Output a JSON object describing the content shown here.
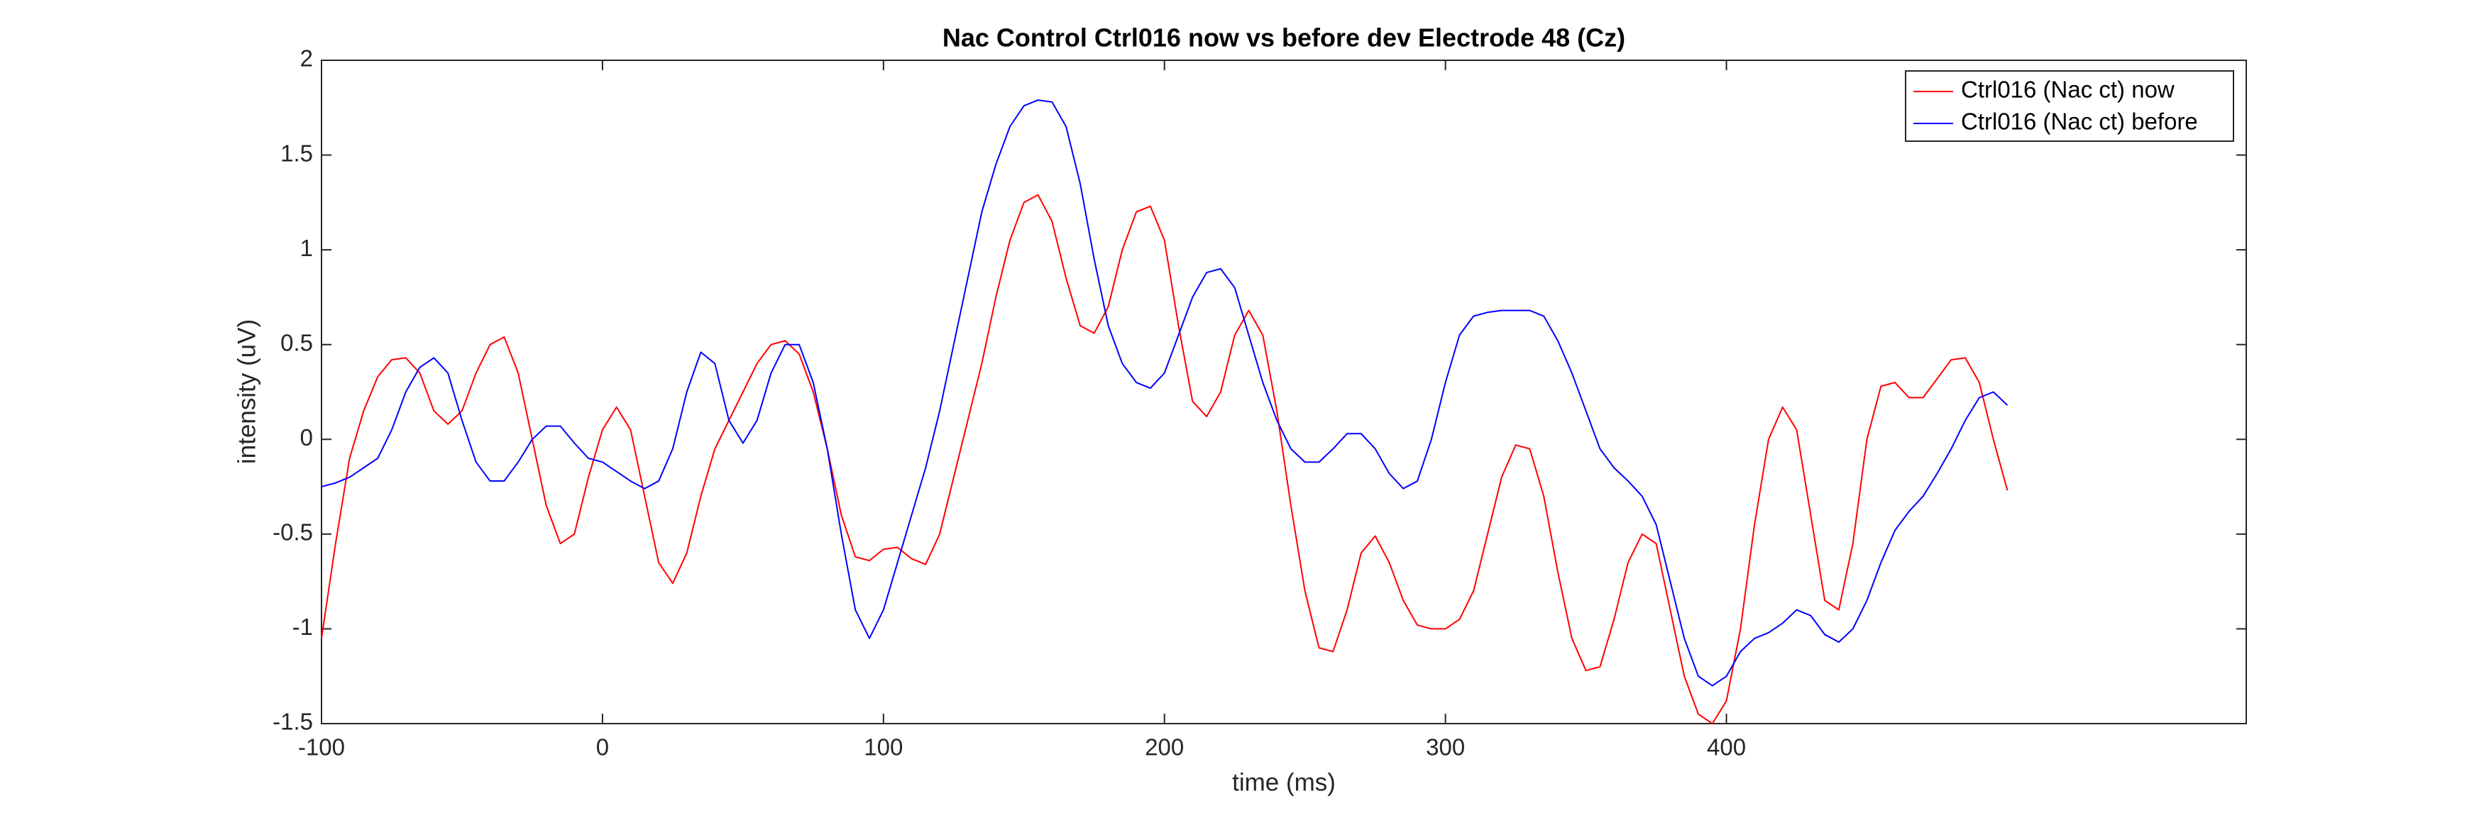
{
  "chart_data": {
    "type": "line",
    "title": "Nac Control Ctrl016 now vs before dev Electrode 48 (Cz)",
    "x_label": "time (ms)",
    "y_label": "intensity (uV)",
    "x": [
      -100,
      -95,
      -90,
      -85,
      -80,
      -75,
      -70,
      -65,
      -60,
      -55,
      -50,
      -45,
      -40,
      -35,
      -30,
      -25,
      -20,
      -15,
      -10,
      -5,
      0,
      5,
      10,
      15,
      20,
      25,
      30,
      35,
      40,
      45,
      50,
      55,
      60,
      65,
      70,
      75,
      80,
      85,
      90,
      95,
      100,
      105,
      110,
      115,
      120,
      125,
      130,
      135,
      140,
      145,
      150,
      155,
      160,
      165,
      170,
      175,
      180,
      185,
      190,
      195,
      200,
      205,
      210,
      215,
      220,
      225,
      230,
      235,
      240,
      245,
      250,
      255,
      260,
      265,
      270,
      275,
      280,
      285,
      290,
      295,
      300,
      305,
      310,
      315,
      320,
      325,
      330,
      335,
      340,
      345,
      350,
      355,
      360,
      365,
      370,
      375,
      380,
      385,
      390,
      395,
      400,
      405,
      410,
      415,
      420,
      425,
      430,
      435,
      440,
      445,
      450,
      455,
      460,
      465,
      470,
      475,
      480,
      485,
      490,
      495,
      500
    ],
    "series": [
      {
        "name": "Ctrl016 (Nac ct) now",
        "color": "#ff0000",
        "values": [
          -1.05,
          -0.55,
          -0.1,
          0.15,
          0.33,
          0.42,
          0.43,
          0.35,
          0.15,
          0.08,
          0.15,
          0.35,
          0.5,
          0.54,
          0.35,
          0.0,
          -0.35,
          -0.55,
          -0.5,
          -0.2,
          0.05,
          0.17,
          0.05,
          -0.3,
          -0.65,
          -0.76,
          -0.6,
          -0.3,
          -0.05,
          0.1,
          0.25,
          0.4,
          0.5,
          0.52,
          0.45,
          0.25,
          -0.05,
          -0.4,
          -0.62,
          -0.64,
          -0.58,
          -0.57,
          -0.63,
          -0.66,
          -0.5,
          -0.2,
          0.1,
          0.4,
          0.75,
          1.05,
          1.25,
          1.29,
          1.15,
          0.85,
          0.6,
          0.56,
          0.7,
          1.0,
          1.2,
          1.23,
          1.05,
          0.6,
          0.2,
          0.12,
          0.25,
          0.55,
          0.68,
          0.55,
          0.15,
          -0.35,
          -0.8,
          -1.1,
          -1.12,
          -0.9,
          -0.6,
          -0.51,
          -0.65,
          -0.85,
          -0.98,
          -1.0,
          -1.0,
          -0.95,
          -0.8,
          -0.5,
          -0.2,
          -0.03,
          -0.05,
          -0.3,
          -0.7,
          -1.05,
          -1.22,
          -1.2,
          -0.95,
          -0.65,
          -0.5,
          -0.55,
          -0.9,
          -1.25,
          -1.45,
          -1.5,
          -1.38,
          -1.0,
          -0.45,
          0.0,
          0.17,
          0.05,
          -0.4,
          -0.85,
          -0.9,
          -0.55,
          0.0,
          0.28,
          0.3,
          0.22,
          0.22,
          0.32,
          0.42,
          0.43,
          0.3,
          0.0,
          -0.27
        ]
      },
      {
        "name": "Ctrl016 (Nac ct) before",
        "color": "#0000ff",
        "values": [
          -0.25,
          -0.23,
          -0.2,
          -0.15,
          -0.1,
          0.05,
          0.25,
          0.38,
          0.43,
          0.35,
          0.1,
          -0.12,
          -0.22,
          -0.22,
          -0.12,
          0.0,
          0.07,
          0.07,
          -0.02,
          -0.1,
          -0.12,
          -0.17,
          -0.22,
          -0.26,
          -0.22,
          -0.05,
          0.25,
          0.46,
          0.4,
          0.1,
          -0.02,
          0.1,
          0.35,
          0.5,
          0.5,
          0.3,
          -0.05,
          -0.5,
          -0.9,
          -1.05,
          -0.9,
          -0.65,
          -0.4,
          -0.15,
          0.15,
          0.5,
          0.85,
          1.2,
          1.45,
          1.65,
          1.76,
          1.79,
          1.78,
          1.65,
          1.35,
          0.95,
          0.6,
          0.4,
          0.3,
          0.27,
          0.35,
          0.55,
          0.75,
          0.88,
          0.9,
          0.8,
          0.55,
          0.3,
          0.1,
          -0.05,
          -0.12,
          -0.12,
          -0.05,
          0.03,
          0.03,
          -0.05,
          -0.18,
          -0.26,
          -0.22,
          0.0,
          0.3,
          0.55,
          0.65,
          0.67,
          0.68,
          0.68,
          0.68,
          0.65,
          0.52,
          0.35,
          0.15,
          -0.05,
          -0.15,
          -0.22,
          -0.3,
          -0.45,
          -0.75,
          -1.05,
          -1.25,
          -1.3,
          -1.25,
          -1.12,
          -1.05,
          -1.02,
          -0.97,
          -0.9,
          -0.93,
          -1.03,
          -1.07,
          -1.0,
          -0.85,
          -0.65,
          -0.48,
          -0.38,
          -0.3,
          -0.18,
          -0.05,
          0.1,
          0.22,
          0.25,
          0.18
        ]
      }
    ],
    "xlim": [
      -100,
      585
    ],
    "ylim": [
      -1.5,
      2
    ],
    "xticks": [
      -100,
      0,
      100,
      200,
      300,
      400
    ],
    "yticks": [
      -1.5,
      -1,
      -0.5,
      0,
      0.5,
      1,
      1.5,
      2
    ],
    "legend": "northeast",
    "grid": false
  }
}
